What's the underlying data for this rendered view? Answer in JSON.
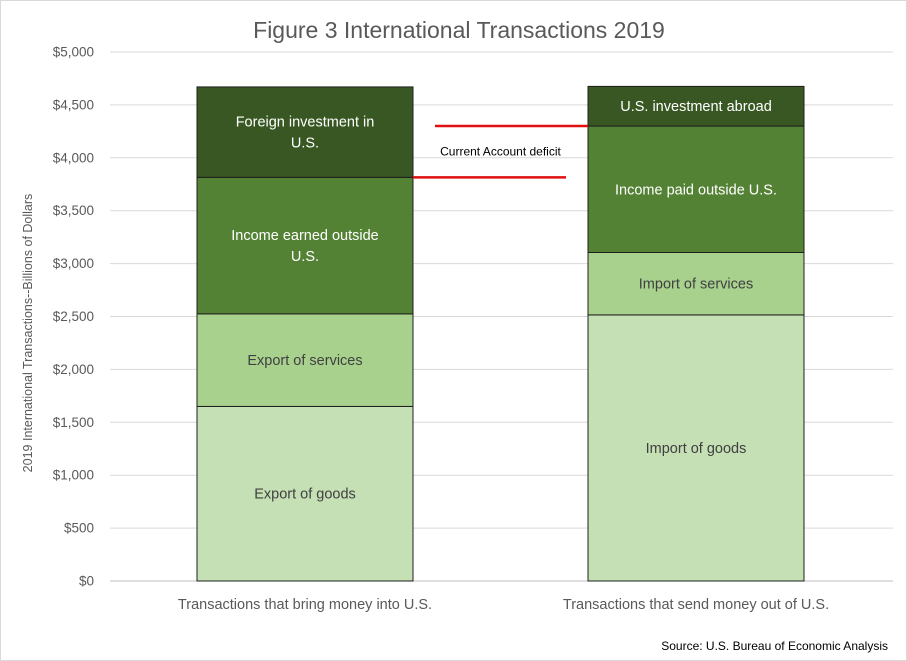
{
  "chart_data": {
    "type": "bar",
    "stacked": true,
    "title": "Figure 3 International Transactions 2019",
    "ylabel": "2019 International Transactions--Billions of Dollars",
    "xlabel": "",
    "ylim": [
      0,
      5000
    ],
    "y_ticks": [
      "$0",
      "$500",
      "$1,000",
      "$1,500",
      "$2,000",
      "$2,500",
      "$3,000",
      "$3,500",
      "$4,000",
      "$4,500",
      "$5,000"
    ],
    "y_tick_values": [
      0,
      500,
      1000,
      1500,
      2000,
      2500,
      3000,
      3500,
      4000,
      4500,
      5000
    ],
    "grid": true,
    "categories": [
      "Transactions that bring money into U.S.",
      "Transactions that send money out of U.S."
    ],
    "stacks": [
      {
        "category": "Transactions that bring money into U.S.",
        "segments": [
          {
            "label": "Export of goods",
            "value": 1650,
            "color": "#c5e0b4",
            "text_color": "#404040"
          },
          {
            "label": "Export of services",
            "value": 875,
            "color": "#a9d18e",
            "text_color": "#404040"
          },
          {
            "label": "Income earned outside U.S.",
            "value": 1290,
            "color": "#548235",
            "text_color": "#ffffff"
          },
          {
            "label": "Foreign investment in U.S.",
            "value": 855,
            "color": "#385723",
            "text_color": "#ffffff"
          }
        ]
      },
      {
        "category": "Transactions that send money out of U.S.",
        "segments": [
          {
            "label": "Import of goods",
            "value": 2515,
            "color": "#c5e0b4",
            "text_color": "#404040"
          },
          {
            "label": "Import of services",
            "value": 590,
            "color": "#a9d18e",
            "text_color": "#404040"
          },
          {
            "label": "Income paid outside U.S.",
            "value": 1195,
            "color": "#548235",
            "text_color": "#ffffff"
          },
          {
            "label": "U.S. investment abroad",
            "value": 375,
            "color": "#385723",
            "text_color": "#ffffff"
          }
        ]
      }
    ],
    "annotation": {
      "text": "Current Account deficit",
      "upper_value": 4300,
      "lower_value": 3815,
      "line_color": "#e01010"
    },
    "source": "Source: U.S. Bureau of Economic Analysis"
  }
}
